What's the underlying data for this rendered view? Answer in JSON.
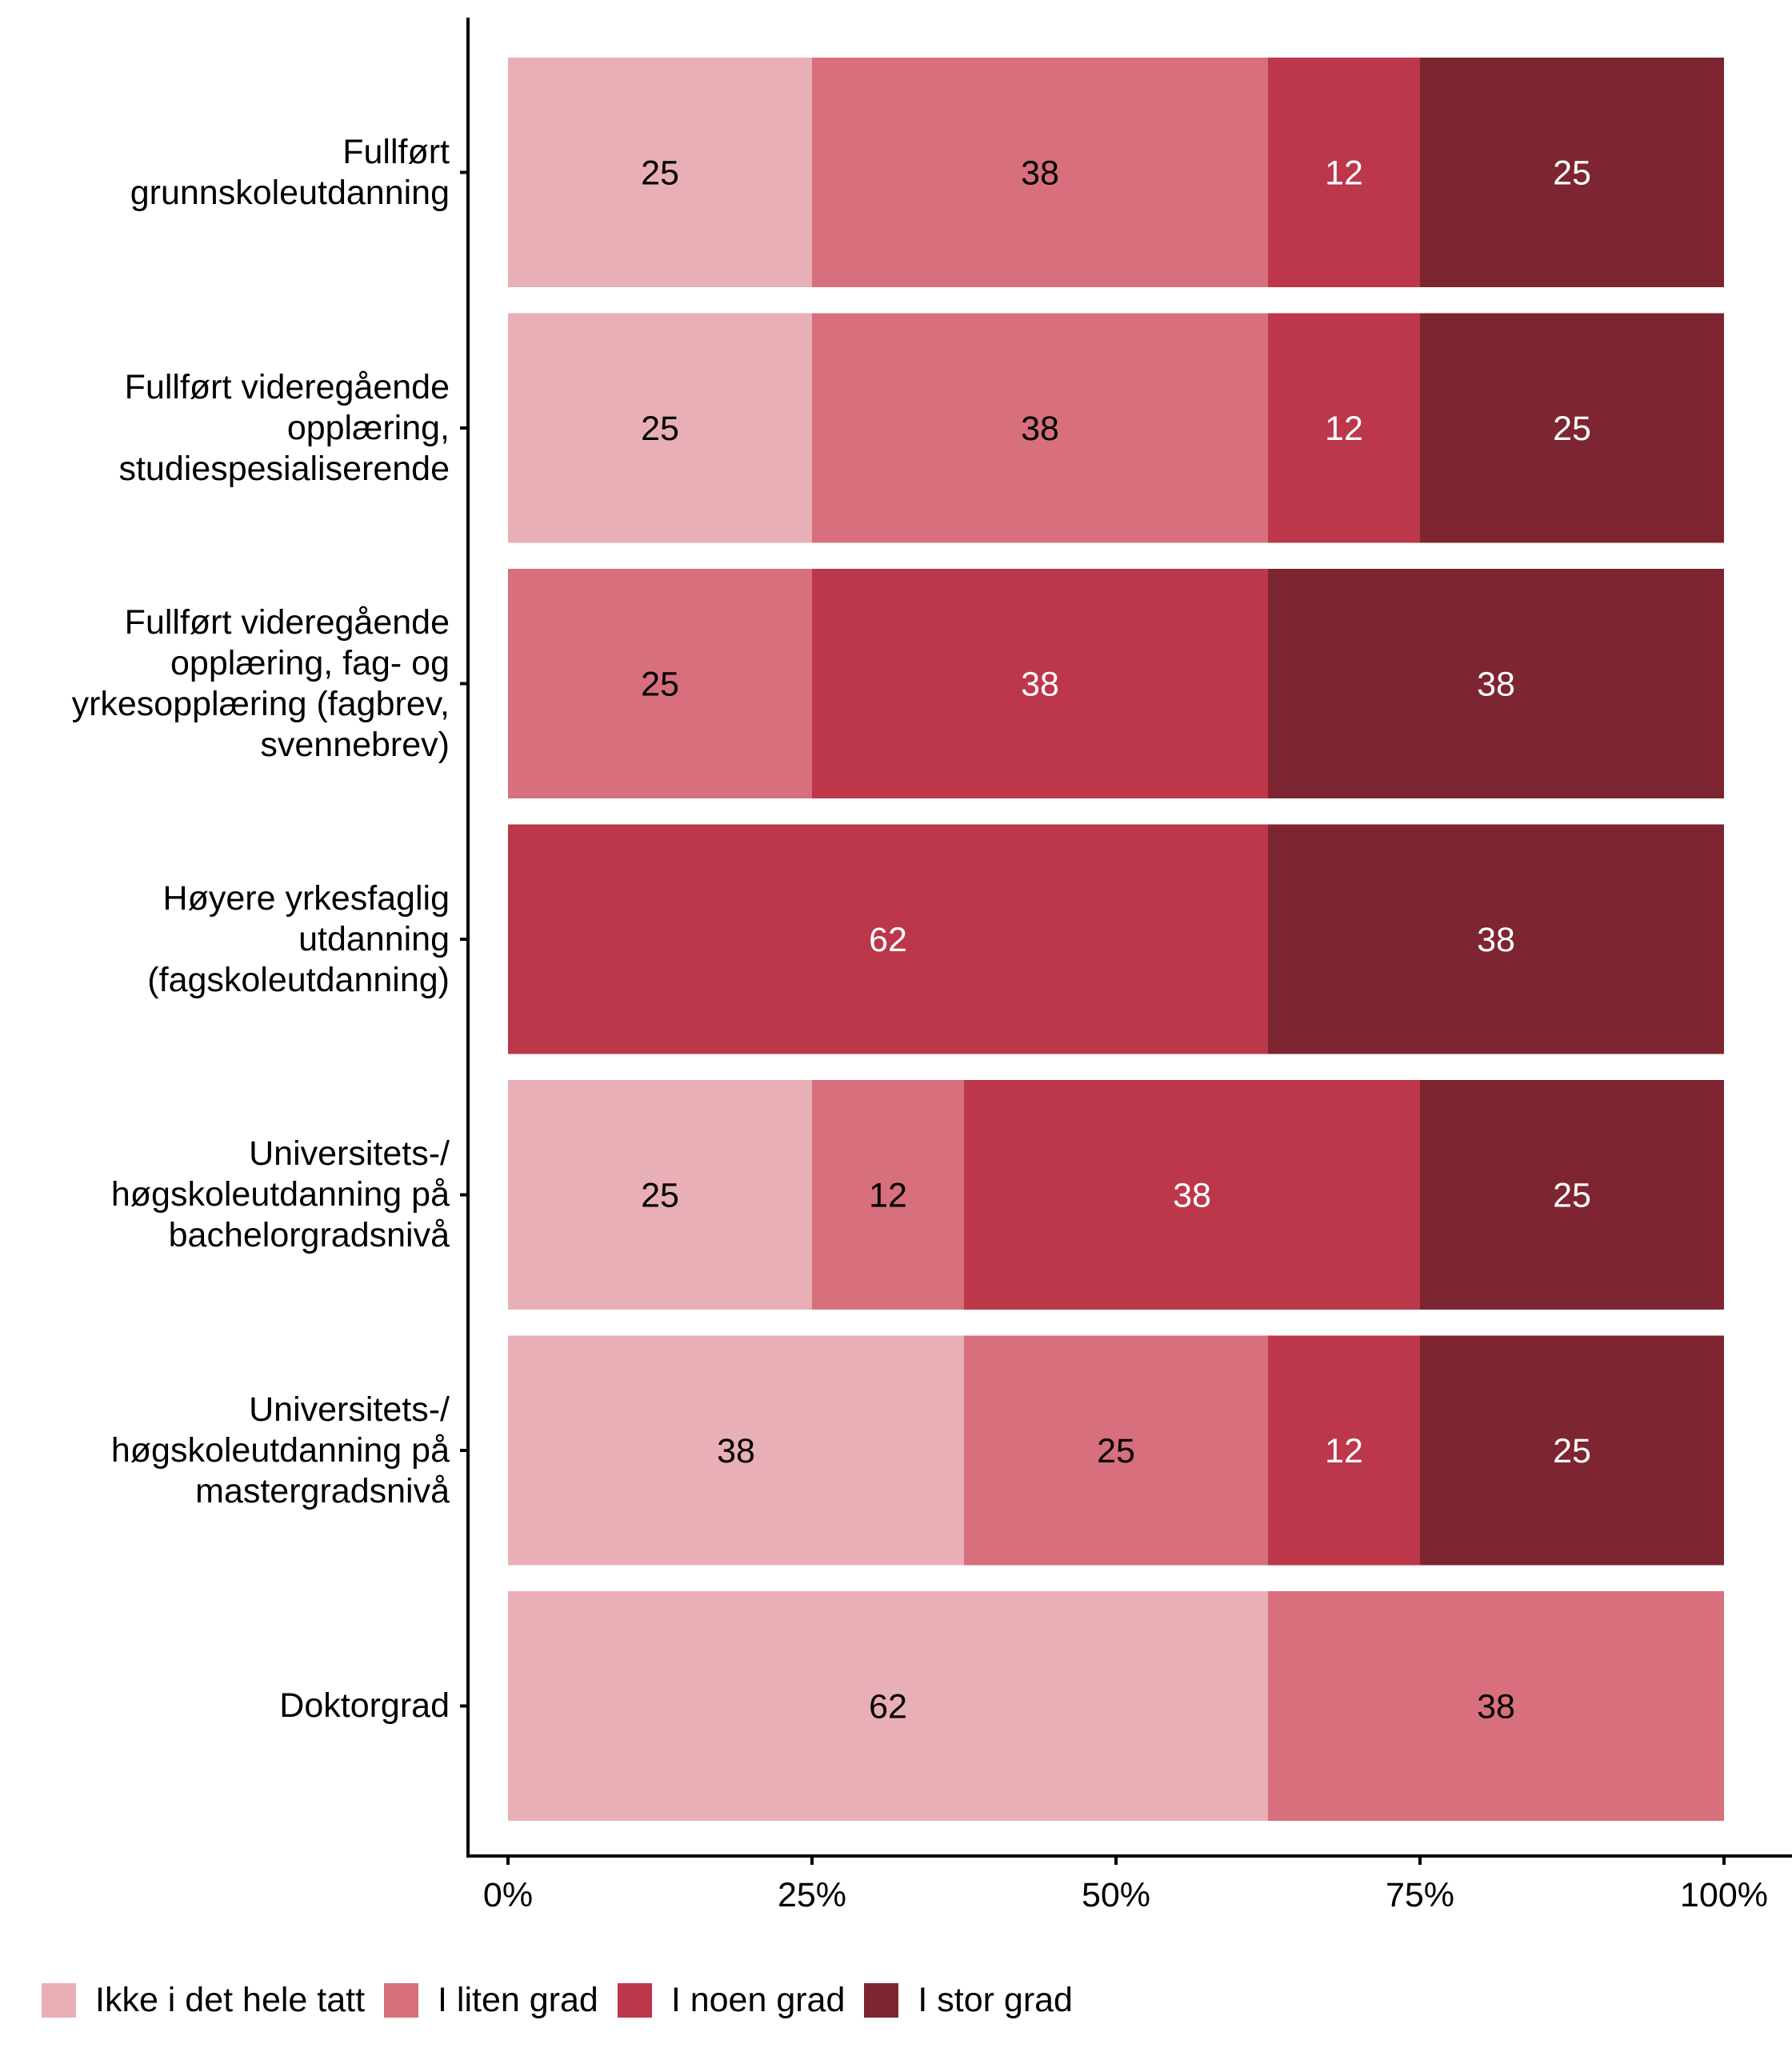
{
  "chart_data": {
    "type": "bar",
    "orientation": "horizontal",
    "stacked": true,
    "normalized": true,
    "title": "",
    "xlabel": "",
    "ylabel": "",
    "xlim": [
      0,
      100
    ],
    "x_ticks": [
      "0%",
      "25%",
      "50%",
      "75%",
      "100%"
    ],
    "x_tick_values": [
      0,
      25,
      50,
      75,
      100
    ],
    "grid": false,
    "legend_position": "bottom",
    "categories": [
      "Fullført\ngrunnskoleutdanning",
      "Fullført videregående\nopplæring,\nstudiespesialiserende",
      "Fullført videregående\nopplæring, fag- og\nyrkesopplæring (fagbrev,\nsvennebrev)",
      "Høyere yrkesfaglig\nutdanning\n(fagskoleutdanning)",
      "Universitets-/\nhøgskoleutdanning på\nbachelorgradsnivå",
      "Universitets-/\nhøgskoleutdanning på\nmastergradsnivå",
      "Doktorgrad"
    ],
    "series": [
      {
        "name": "Ikke i det hele tatt",
        "color": "#E8B0B6",
        "label_color": "#000000",
        "values": [
          25,
          25,
          0,
          0,
          25,
          37.5,
          62.5
        ],
        "labels": [
          "25",
          "25",
          "",
          "",
          "25",
          "38",
          "62"
        ]
      },
      {
        "name": "I liten grad",
        "color": "#D7707C",
        "label_color": "#000000",
        "values": [
          37.5,
          37.5,
          25,
          0,
          12.5,
          25,
          37.5
        ],
        "labels": [
          "38",
          "38",
          "25",
          "",
          "12",
          "25",
          "38"
        ]
      },
      {
        "name": "I noen grad",
        "color": "#BC374A",
        "label_color": "#FFFFFF",
        "values": [
          12.5,
          12.5,
          37.5,
          62.5,
          37.5,
          12.5,
          0
        ],
        "labels": [
          "12",
          "12",
          "38",
          "62",
          "38",
          "12",
          ""
        ]
      },
      {
        "name": "I stor grad",
        "color": "#7D2530",
        "label_color": "#FFFFFF",
        "values": [
          25,
          25,
          37.5,
          37.5,
          25,
          25,
          0
        ],
        "labels": [
          "25",
          "25",
          "38",
          "38",
          "25",
          "25",
          ""
        ]
      }
    ]
  }
}
